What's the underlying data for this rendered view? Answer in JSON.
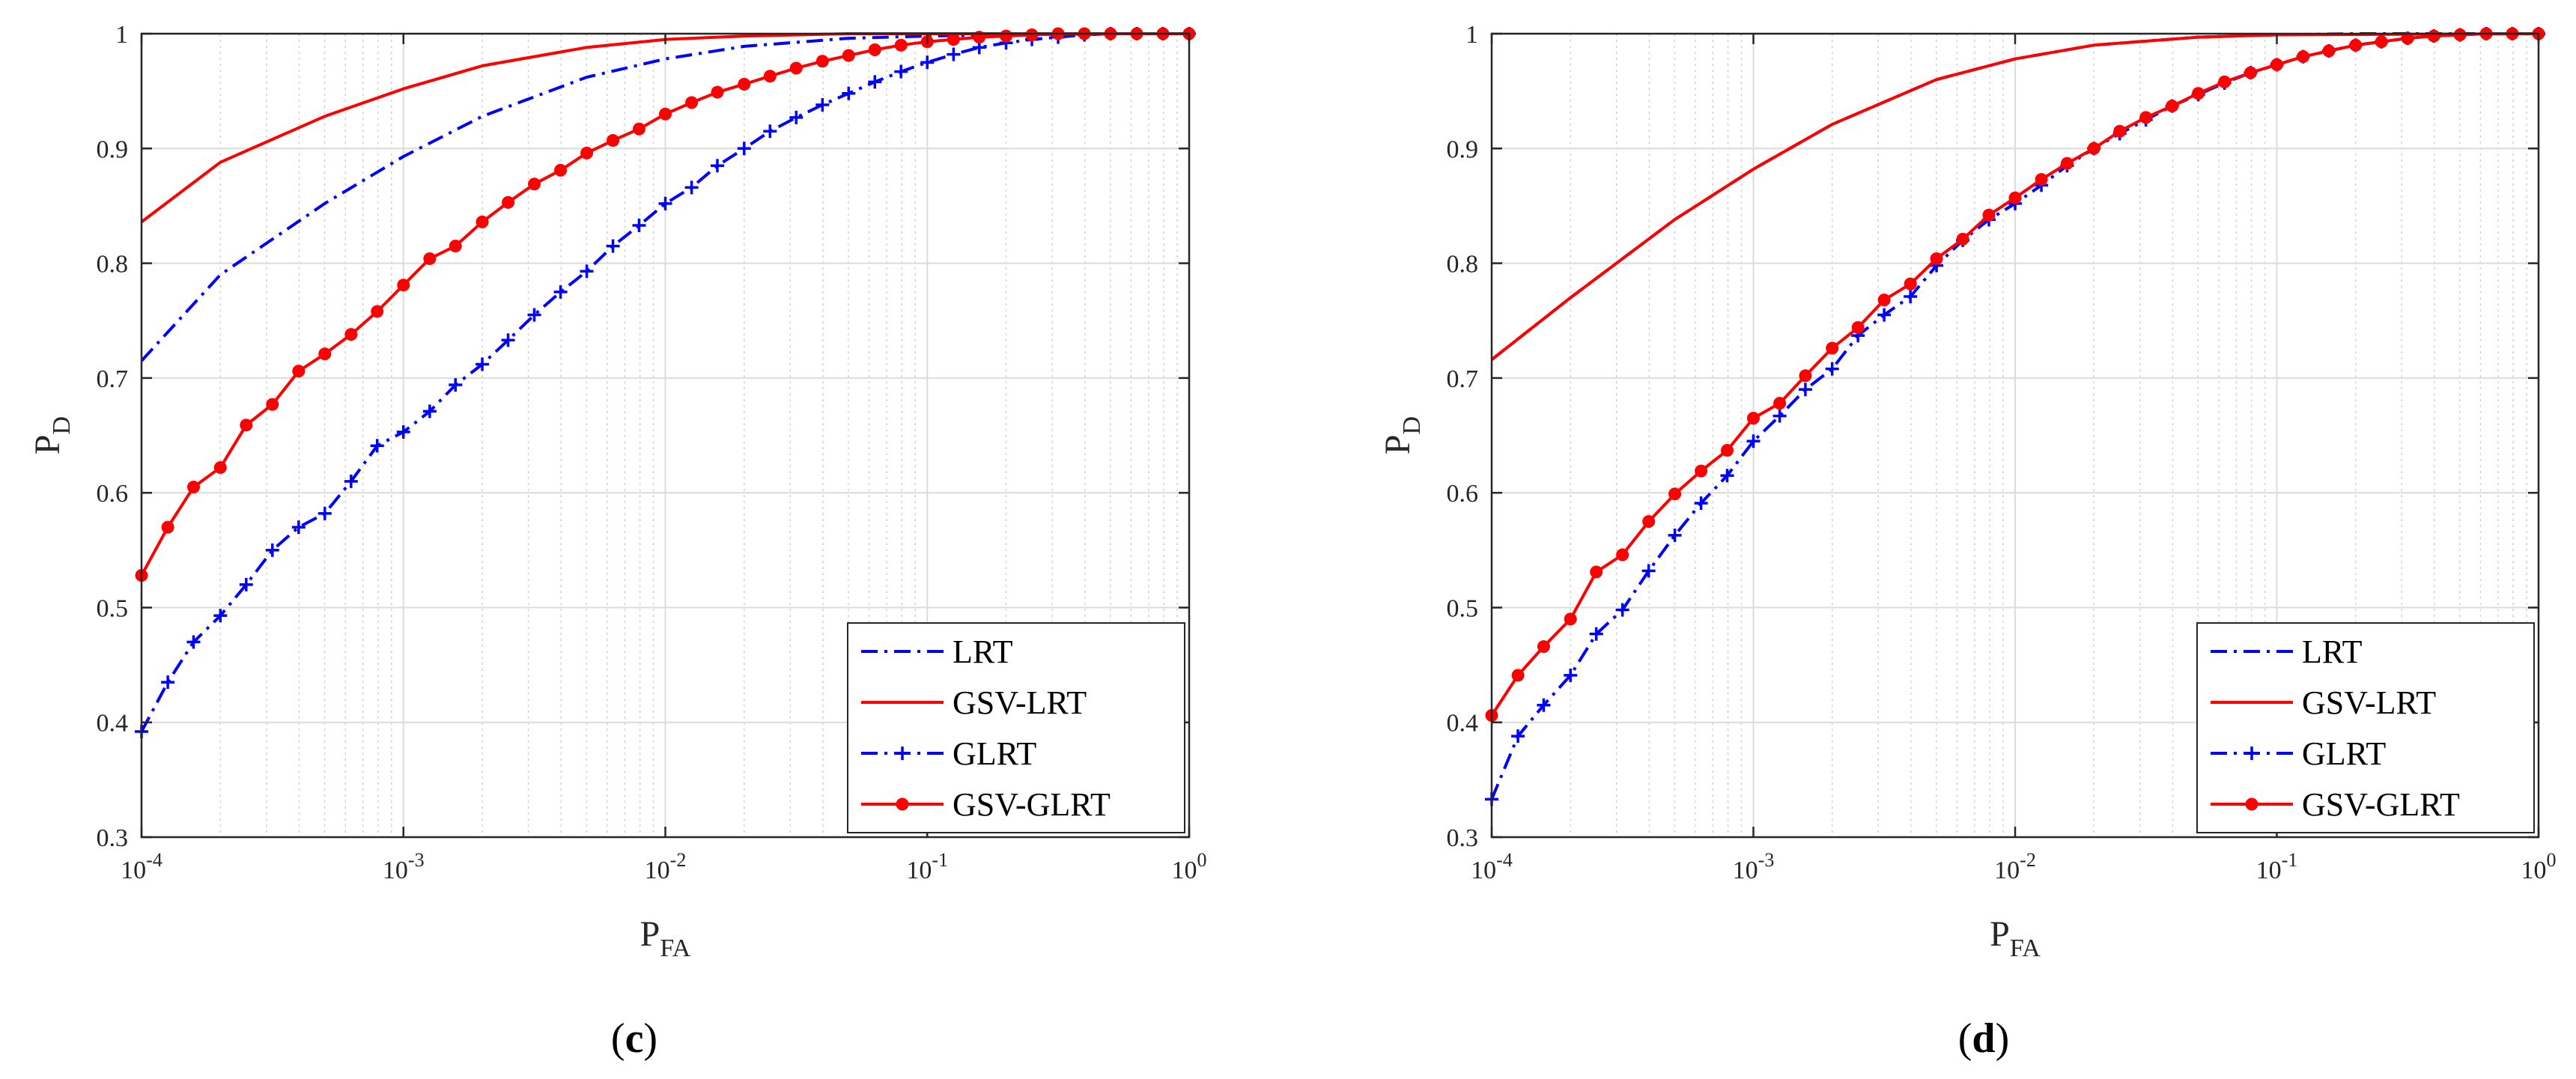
{
  "chart_data": [
    {
      "type": "line",
      "panel_label": {
        "open": "(",
        "letter": "c",
        "close": ")"
      },
      "xscale": "log",
      "xlim": [
        0.0001,
        1
      ],
      "ylim": [
        0.3,
        1
      ],
      "xlabel": {
        "main": "P",
        "sub": "FA"
      },
      "ylabel": {
        "main": "P",
        "sub": "D"
      },
      "xticks": [
        {
          "base": "10",
          "exp": "-4"
        },
        {
          "base": "10",
          "exp": "-3"
        },
        {
          "base": "10",
          "exp": "-2"
        },
        {
          "base": "10",
          "exp": "-1"
        },
        {
          "base": "10",
          "exp": "0"
        }
      ],
      "yticks": [
        "0.3",
        "0.4",
        "0.5",
        "0.6",
        "0.7",
        "0.8",
        "0.9",
        "1"
      ],
      "grid": true,
      "legend_position": "bottom-right",
      "series": [
        {
          "name": "LRT",
          "color": "#0000ff",
          "style": "dashdot",
          "marker": "none",
          "x": [
            0.0001,
            0.0002,
            0.0005,
            0.001,
            0.002,
            0.005,
            0.01,
            0.02,
            0.05,
            0.1,
            0.2,
            0.5,
            1
          ],
          "y": [
            0.715,
            0.79,
            0.852,
            0.893,
            0.928,
            0.962,
            0.978,
            0.989,
            0.996,
            0.998,
            0.999,
            1.0,
            1.0
          ]
        },
        {
          "name": "GSV-LRT",
          "color": "#ff0000",
          "style": "solid",
          "marker": "none",
          "x": [
            0.0001,
            0.0002,
            0.0005,
            0.001,
            0.002,
            0.005,
            0.01,
            0.02,
            0.05,
            0.1,
            1
          ],
          "y": [
            0.836,
            0.888,
            0.928,
            0.952,
            0.972,
            0.988,
            0.995,
            0.998,
            1.0,
            1.0,
            1.0
          ]
        },
        {
          "name": "GLRT",
          "color": "#0000ff",
          "style": "dashdot",
          "marker": "plus",
          "x": [
            0.0001,
            0.000126,
            0.000158,
            0.0002,
            0.000251,
            0.000316,
            0.000398,
            0.000501,
            0.000631,
            0.000794,
            0.001,
            0.00126,
            0.00158,
            0.002,
            0.00251,
            0.00316,
            0.00398,
            0.00501,
            0.00631,
            0.00794,
            0.01,
            0.0126,
            0.0158,
            0.02,
            0.0251,
            0.0316,
            0.0398,
            0.0501,
            0.0631,
            0.0794,
            0.1,
            0.126,
            0.158,
            0.2,
            0.251,
            0.316,
            0.398,
            0.501,
            0.631,
            0.794,
            1
          ],
          "y": [
            0.392,
            0.435,
            0.47,
            0.493,
            0.52,
            0.55,
            0.57,
            0.582,
            0.61,
            0.641,
            0.653,
            0.671,
            0.694,
            0.712,
            0.733,
            0.755,
            0.775,
            0.793,
            0.815,
            0.833,
            0.852,
            0.866,
            0.885,
            0.9,
            0.915,
            0.927,
            0.938,
            0.948,
            0.958,
            0.967,
            0.975,
            0.982,
            0.988,
            0.992,
            0.995,
            0.997,
            0.999,
            1.0,
            1.0,
            1.0,
            1.0
          ]
        },
        {
          "name": "GSV-GLRT",
          "color": "#ff0000",
          "style": "solid",
          "marker": "star",
          "x": [
            0.0001,
            0.000126,
            0.000158,
            0.0002,
            0.000251,
            0.000316,
            0.000398,
            0.000501,
            0.000631,
            0.000794,
            0.001,
            0.00126,
            0.00158,
            0.002,
            0.00251,
            0.00316,
            0.00398,
            0.00501,
            0.00631,
            0.00794,
            0.01,
            0.0126,
            0.0158,
            0.02,
            0.0251,
            0.0316,
            0.0398,
            0.0501,
            0.0631,
            0.0794,
            0.1,
            0.126,
            0.158,
            0.2,
            0.251,
            0.316,
            0.398,
            0.501,
            0.631,
            0.794,
            1
          ],
          "y": [
            0.528,
            0.57,
            0.605,
            0.622,
            0.659,
            0.677,
            0.706,
            0.721,
            0.738,
            0.758,
            0.781,
            0.804,
            0.815,
            0.836,
            0.853,
            0.869,
            0.881,
            0.896,
            0.907,
            0.917,
            0.93,
            0.94,
            0.949,
            0.956,
            0.963,
            0.97,
            0.976,
            0.981,
            0.986,
            0.99,
            0.993,
            0.995,
            0.997,
            0.998,
            0.999,
            1.0,
            1.0,
            1.0,
            1.0,
            1.0,
            1.0
          ]
        }
      ]
    },
    {
      "type": "line",
      "panel_label": {
        "open": "(",
        "letter": "d",
        "close": ")"
      },
      "xscale": "log",
      "xlim": [
        0.0001,
        1
      ],
      "ylim": [
        0.3,
        1
      ],
      "xlabel": {
        "main": "P",
        "sub": "FA"
      },
      "ylabel": {
        "main": "P",
        "sub": "D"
      },
      "xticks": [
        {
          "base": "10",
          "exp": "-4"
        },
        {
          "base": "10",
          "exp": "-3"
        },
        {
          "base": "10",
          "exp": "-2"
        },
        {
          "base": "10",
          "exp": "-1"
        },
        {
          "base": "10",
          "exp": "0"
        }
      ],
      "yticks": [
        "0.3",
        "0.4",
        "0.5",
        "0.6",
        "0.7",
        "0.8",
        "0.9",
        "1"
      ],
      "grid": true,
      "legend_position": "bottom-right",
      "series": [
        {
          "name": "LRT",
          "color": "#0000ff",
          "style": "dashdot",
          "marker": "none",
          "x": [
            0.0001,
            0.0002,
            0.0005,
            0.001,
            0.002,
            0.005,
            0.01,
            0.02,
            0.05,
            0.1,
            0.2,
            0.5,
            1
          ],
          "y": [
            0.716,
            0.77,
            0.838,
            0.882,
            0.921,
            0.96,
            0.978,
            0.99,
            0.997,
            0.999,
            1.0,
            1.0,
            1.0
          ]
        },
        {
          "name": "GSV-LRT",
          "color": "#ff0000",
          "style": "solid",
          "marker": "none",
          "x": [
            0.0001,
            0.0002,
            0.0005,
            0.001,
            0.002,
            0.005,
            0.01,
            0.02,
            0.05,
            0.1,
            1
          ],
          "y": [
            0.716,
            0.77,
            0.838,
            0.882,
            0.921,
            0.96,
            0.978,
            0.99,
            0.997,
            0.999,
            1.0
          ]
        },
        {
          "name": "GLRT",
          "color": "#0000ff",
          "style": "dashdot",
          "marker": "plus",
          "x": [
            0.0001,
            0.000126,
            0.000158,
            0.0002,
            0.000251,
            0.000316,
            0.000398,
            0.000501,
            0.000631,
            0.000794,
            0.001,
            0.00126,
            0.00158,
            0.002,
            0.00251,
            0.00316,
            0.00398,
            0.00501,
            0.00631,
            0.00794,
            0.01,
            0.0126,
            0.0158,
            0.02,
            0.0251,
            0.0316,
            0.0398,
            0.0501,
            0.0631,
            0.0794,
            0.1,
            0.126,
            0.158,
            0.2,
            0.251,
            0.316,
            0.398,
            0.501,
            0.631,
            0.794,
            1
          ],
          "y": [
            0.333,
            0.388,
            0.415,
            0.441,
            0.477,
            0.498,
            0.532,
            0.563,
            0.591,
            0.615,
            0.645,
            0.667,
            0.69,
            0.708,
            0.737,
            0.755,
            0.771,
            0.798,
            0.82,
            0.838,
            0.852,
            0.868,
            0.885,
            0.9,
            0.913,
            0.925,
            0.937,
            0.947,
            0.957,
            0.966,
            0.973,
            0.98,
            0.985,
            0.99,
            0.993,
            0.996,
            0.998,
            0.999,
            1.0,
            1.0,
            1.0
          ]
        },
        {
          "name": "GSV-GLRT",
          "color": "#ff0000",
          "style": "solid",
          "marker": "star",
          "x": [
            0.0001,
            0.000126,
            0.000158,
            0.0002,
            0.000251,
            0.000316,
            0.000398,
            0.000501,
            0.000631,
            0.000794,
            0.001,
            0.00126,
            0.00158,
            0.002,
            0.00251,
            0.00316,
            0.00398,
            0.00501,
            0.00631,
            0.00794,
            0.01,
            0.0126,
            0.0158,
            0.02,
            0.0251,
            0.0316,
            0.0398,
            0.0501,
            0.0631,
            0.0794,
            0.1,
            0.126,
            0.158,
            0.2,
            0.251,
            0.316,
            0.398,
            0.501,
            0.631,
            0.794,
            1
          ],
          "y": [
            0.406,
            0.441,
            0.466,
            0.49,
            0.531,
            0.546,
            0.575,
            0.599,
            0.619,
            0.637,
            0.665,
            0.678,
            0.702,
            0.726,
            0.744,
            0.768,
            0.782,
            0.804,
            0.821,
            0.842,
            0.857,
            0.873,
            0.887,
            0.9,
            0.915,
            0.927,
            0.937,
            0.948,
            0.958,
            0.966,
            0.973,
            0.98,
            0.985,
            0.99,
            0.993,
            0.996,
            0.998,
            0.999,
            1.0,
            1.0,
            1.0
          ]
        }
      ]
    }
  ]
}
